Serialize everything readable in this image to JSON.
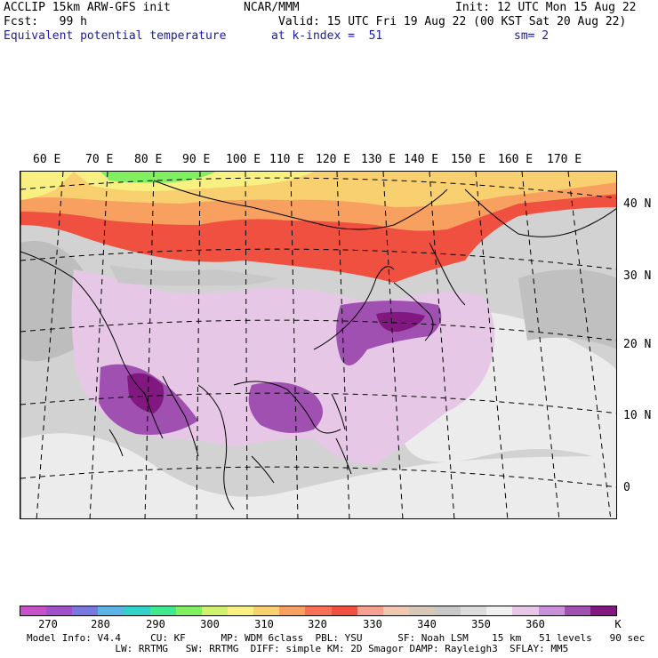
{
  "header": {
    "line1_left": "ACCLIP 15km ARW-GFS init",
    "line1_mid": "NCAR/MMM",
    "line1_right": "Init: 12 UTC Mon 15 Aug 22",
    "line2_left": "Fcst:   99 h",
    "line2_right": "Valid: 15 UTC Fri 19 Aug 22 (00 KST Sat 20 Aug 22)",
    "line3_left": "Equivalent potential temperature",
    "line3_mid": "at k-index =  51",
    "line3_right": "sm= 2"
  },
  "map": {
    "lon_labels": [
      "60 E",
      "70 E",
      "80 E",
      "90 E",
      "100 E",
      "110 E",
      "120 E",
      "130 E",
      "140 E",
      "150 E",
      "160 E",
      "170 E"
    ],
    "lat_labels": [
      "40 N",
      "30 N",
      "20 N",
      "10 N",
      "0"
    ]
  },
  "colorbar": {
    "unit": "K",
    "tick_labels": [
      "270",
      "280",
      "290",
      "300",
      "310",
      "320",
      "330",
      "340",
      "350",
      "360"
    ],
    "colors": [
      "#c850c8",
      "#a050c8",
      "#7878e0",
      "#5ab4e6",
      "#32d2c8",
      "#40e890",
      "#80f060",
      "#d0f070",
      "#f8f080",
      "#f8d070",
      "#f8a060",
      "#f87058",
      "#f05040",
      "#f8a090",
      "#f0c8b0",
      "#d8c8b8",
      "#c8c8c8",
      "#dcdcdc",
      "#f0f0f0",
      "#e6c8e6",
      "#c890d8",
      "#a050b0",
      "#801880"
    ]
  },
  "footer": {
    "line1": "Model Info: V4.4     CU: KF      MP: WDM 6class  PBL: YSU      SF: Noah LSM    15 km   51 levels   90 sec",
    "line2": "               LW: RRTMG   SW: RRTMG  DIFF: simple KM: 2D Smagor DAMP: Rayleigh3  SFLAY: MM5"
  }
}
